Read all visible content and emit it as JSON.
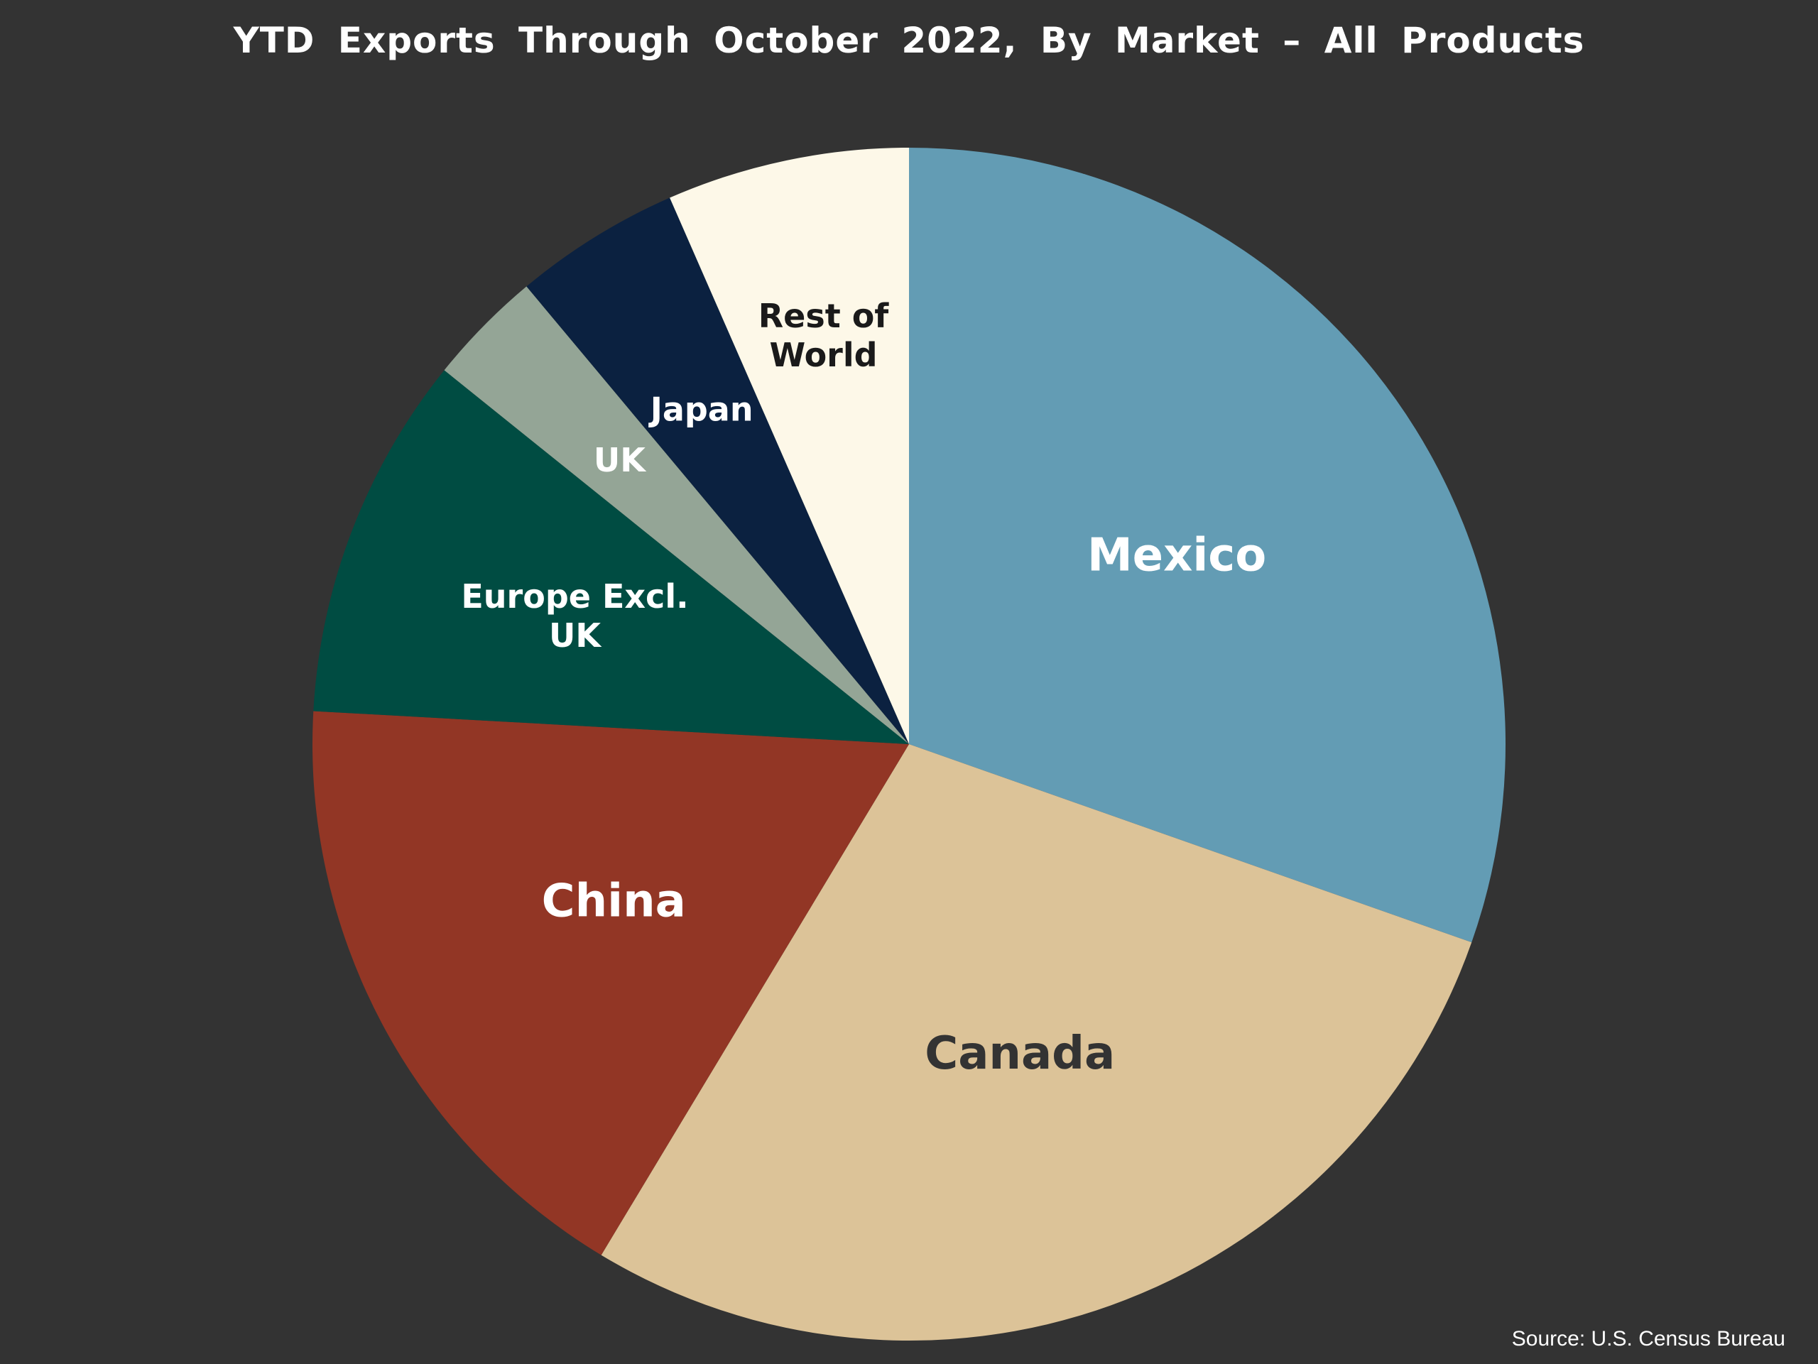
{
  "chart_data": {
    "type": "pie",
    "title": "YTD Exports Through October 2022, By Market – All Products",
    "source": "Source: U.S. Census Bureau",
    "start_angle_deg": 0,
    "direction": "clockwise",
    "slices": [
      {
        "label": "Mexico",
        "value": 31.0,
        "color": "#639cb4",
        "text_color": "#ffffff"
      },
      {
        "label": "Canada",
        "value": 28.8,
        "color": "#dcc398",
        "text_color": "#333333"
      },
      {
        "label": "China",
        "value": 17.6,
        "color": "#923625",
        "text_color": "#ffffff"
      },
      {
        "label": "Europe Excl. UK",
        "value": 10.1,
        "color": "#004c42",
        "text_color": "#ffffff"
      },
      {
        "label": "UK",
        "value": 3.2,
        "color": "#94a596",
        "text_color": "#ffffff"
      },
      {
        "label": "Japan",
        "value": 4.6,
        "color": "#0b2140",
        "text_color": "#ffffff"
      },
      {
        "label": "Rest of World",
        "value": 6.7,
        "color": "#fdf8e8",
        "text_color": "#1a1a1a"
      }
    ]
  }
}
